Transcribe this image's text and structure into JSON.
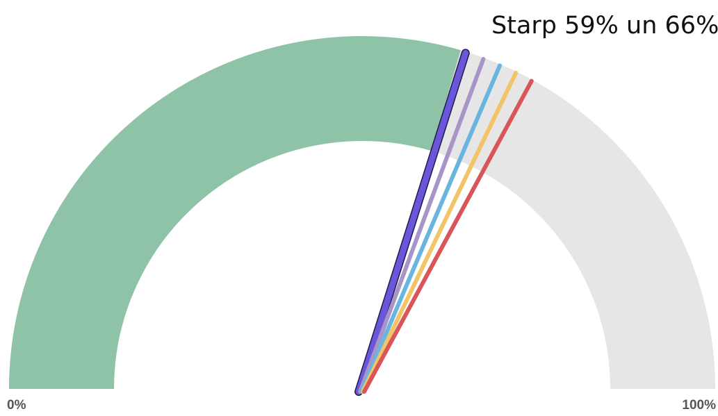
{
  "chart_data": {
    "type": "gauge",
    "min_label": "0%",
    "max_label": "100%",
    "value_range": [
      0,
      100
    ],
    "filled_value": 59,
    "annotation": "Starp 59% un 66%",
    "needles": [
      {
        "value": 59.5,
        "color": "#6a56d8"
      },
      {
        "value": 61.2,
        "color": "#a895c8"
      },
      {
        "value": 62.8,
        "color": "#69b5e0"
      },
      {
        "value": 64.4,
        "color": "#f2c467"
      },
      {
        "value": 66.0,
        "color": "#d9555a"
      }
    ],
    "colors": {
      "filled": "#8fc3a7",
      "unfilled": "#e6e6e6"
    }
  }
}
